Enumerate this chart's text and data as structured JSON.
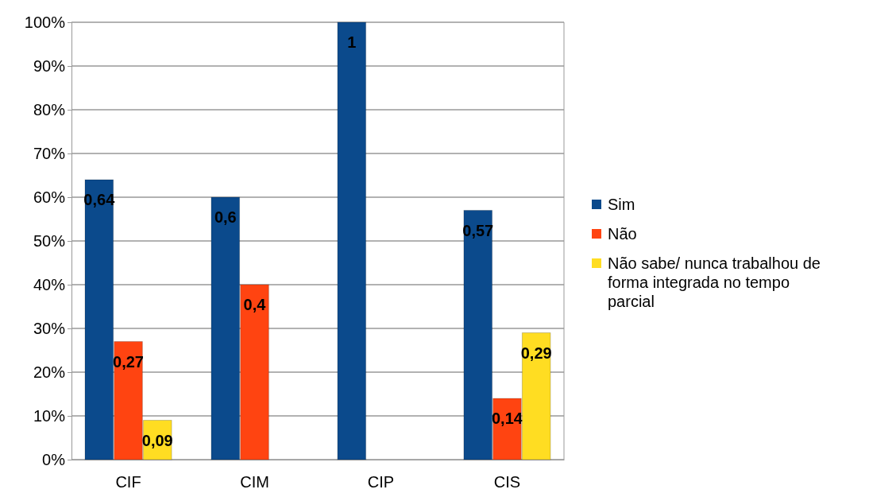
{
  "chart_data": {
    "type": "bar",
    "categories": [
      "CIF",
      "CIM",
      "CIP",
      "CIS"
    ],
    "series": [
      {
        "name": "Sim",
        "color": "#0b4a8c",
        "values": [
          0.64,
          0.6,
          1,
          0.57
        ],
        "value_labels": [
          "0,64",
          "0,6",
          "1",
          "0,57"
        ]
      },
      {
        "name": "Não",
        "color": "#ff4411",
        "values": [
          0.27,
          0.4,
          null,
          0.14
        ],
        "value_labels": [
          "0,27",
          "0,4",
          null,
          "0,14"
        ]
      },
      {
        "name": "Não sabe/ nunca trabalhou de forma integrada no tempo parcial",
        "color": "#ffdd22",
        "values": [
          0.09,
          null,
          null,
          0.29
        ],
        "value_labels": [
          "0,09",
          null,
          null,
          "0,29"
        ]
      }
    ],
    "ylim": [
      0,
      1
    ],
    "yticks": [
      {
        "value": 0,
        "label": "0%"
      },
      {
        "value": 0.1,
        "label": "10%"
      },
      {
        "value": 0.2,
        "label": "20%"
      },
      {
        "value": 0.3,
        "label": "30%"
      },
      {
        "value": 0.4,
        "label": "40%"
      },
      {
        "value": 0.5,
        "label": "50%"
      },
      {
        "value": 0.6,
        "label": "60%"
      },
      {
        "value": 0.7,
        "label": "70%"
      },
      {
        "value": 0.8,
        "label": "80%"
      },
      {
        "value": 0.9,
        "label": "90%"
      },
      {
        "value": 1,
        "label": "100%"
      }
    ],
    "grid": "y",
    "legend": "right"
  }
}
